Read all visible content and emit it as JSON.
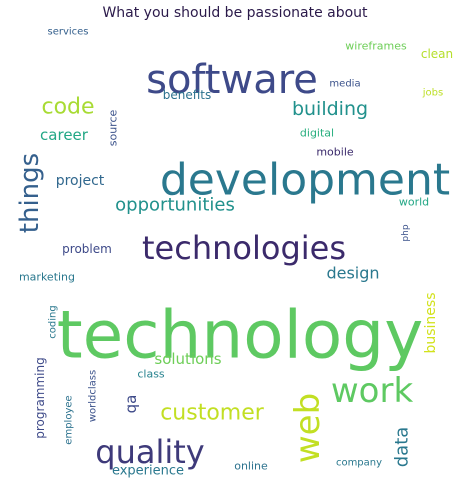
{
  "title": "What you should be passionate about",
  "words": [
    {
      "text": "technology",
      "weight": 100,
      "color": "#5ec962"
    },
    {
      "text": "development",
      "weight": 62,
      "color": "#2a788e"
    },
    {
      "text": "software",
      "weight": 55,
      "color": "#3e4a89"
    },
    {
      "text": "technologies",
      "weight": 45,
      "color": "#3b2a6b"
    },
    {
      "text": "web",
      "weight": 42,
      "color": "#c2df23"
    },
    {
      "text": "quality",
      "weight": 38,
      "color": "#3e3a7a"
    },
    {
      "text": "work",
      "weight": 38,
      "color": "#5ec962"
    },
    {
      "text": "things",
      "weight": 28,
      "color": "#35608d"
    },
    {
      "text": "customer",
      "weight": 24,
      "color": "#c2df23"
    },
    {
      "text": "code",
      "weight": 22,
      "color": "#a8db34"
    },
    {
      "text": "building",
      "weight": 20,
      "color": "#21918c"
    },
    {
      "text": "opportunities",
      "weight": 19,
      "color": "#21918c"
    },
    {
      "text": "data",
      "weight": 18,
      "color": "#2a788e"
    },
    {
      "text": "design",
      "weight": 16,
      "color": "#2a788e"
    },
    {
      "text": "career",
      "weight": 15,
      "color": "#22a785"
    },
    {
      "text": "solutions",
      "weight": 15,
      "color": "#6ece58"
    },
    {
      "text": "project",
      "weight": 14,
      "color": "#31688e"
    },
    {
      "text": "business",
      "weight": 14,
      "color": "#d2e21b"
    },
    {
      "text": "qa",
      "weight": 14,
      "color": "#3e4a89"
    },
    {
      "text": "experience",
      "weight": 13,
      "color": "#2a788e"
    },
    {
      "text": "benefits",
      "weight": 12,
      "color": "#2c728e"
    },
    {
      "text": "clean",
      "weight": 12,
      "color": "#b5de2b"
    },
    {
      "text": "problem",
      "weight": 11,
      "color": "#3e4a89"
    },
    {
      "text": "programming",
      "weight": 11,
      "color": "#3e4a89"
    },
    {
      "text": "online",
      "weight": 11,
      "color": "#2c728e"
    },
    {
      "text": "world",
      "weight": 10,
      "color": "#22a785"
    },
    {
      "text": "marketing",
      "weight": 10,
      "color": "#2a788e"
    },
    {
      "text": "class",
      "weight": 10,
      "color": "#26828e"
    },
    {
      "text": "source",
      "weight": 10,
      "color": "#3b528b"
    },
    {
      "text": "wireframes",
      "weight": 10,
      "color": "#6ece58"
    },
    {
      "text": "digital",
      "weight": 10,
      "color": "#29af7f"
    },
    {
      "text": "mobile",
      "weight": 10,
      "color": "#3b2a6b"
    },
    {
      "text": "media",
      "weight": 9,
      "color": "#3b528b"
    },
    {
      "text": "services",
      "weight": 9,
      "color": "#35608d"
    },
    {
      "text": "jobs",
      "weight": 9,
      "color": "#bddf26"
    },
    {
      "text": "coding",
      "weight": 9,
      "color": "#2a788e"
    },
    {
      "text": "worldclass",
      "weight": 9,
      "color": "#3b528b"
    },
    {
      "text": "employee",
      "weight": 9,
      "color": "#2c728e"
    },
    {
      "text": "company",
      "weight": 9,
      "color": "#2a788e"
    },
    {
      "text": "php",
      "weight": 8,
      "color": "#3b528b"
    }
  ]
}
